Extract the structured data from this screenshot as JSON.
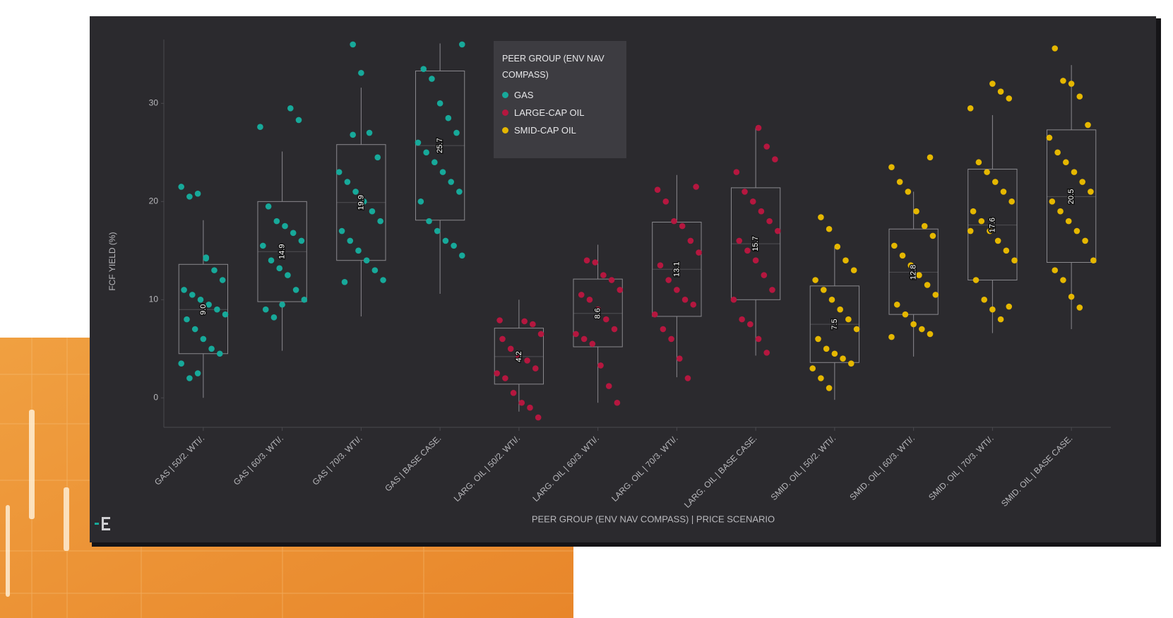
{
  "chart_data": {
    "type": "box",
    "y_label": "FCF YIELD (%)",
    "x_label": "PEER GROUP (ENV NAV COMPASS) | PRICE SCENARIO",
    "legend_title": "PEER GROUP (ENV NAV COMPASS)",
    "ylim": [
      -3,
      36.5
    ],
    "yticks": [
      0,
      10,
      20,
      30
    ],
    "categories": [
      "GAS | 50/2. WTI/.",
      "GAS | 60/3. WTI/.",
      "GAS | 70/3. WTI/.",
      "GAS | BASE CASE.",
      "LARG. OIL | 50/2. WTI/.",
      "LARG. OIL | 60/3. WTI/.",
      "LARG. OIL | 70/3. WTI/.",
      "LARG. OIL | BASE CASE.",
      "SMID. OIL | 50/2. WTI/.",
      "SMID. OIL | 60/3. WTI/.",
      "SMID. OIL | 70/3. WTI/.",
      "SMID. OIL | BASE CASE."
    ],
    "series": [
      {
        "name": "GAS",
        "color": "#17a99a",
        "boxes": [
          {
            "low": 0,
            "q1": 4.5,
            "median": 9,
            "median_label": "9.0",
            "q3": 13.6,
            "high": 18.1,
            "points": [
              21.5,
              20.5,
              20.8,
              14.2,
              13,
              12,
              11,
              10.5,
              10,
              9.5,
              9,
              8.5,
              8,
              7,
              6,
              5,
              4.5,
              3.5,
              2,
              2.5,
              14.3
            ]
          },
          {
            "low": 4.8,
            "q1": 9.8,
            "median": 14.9,
            "q3": 20,
            "high": 25.1,
            "points": [
              29.5,
              28.3,
              27.6,
              19.5,
              18,
              17.5,
              16.8,
              16,
              15.5,
              14,
              13.2,
              12.5,
              11,
              10,
              9,
              8.2,
              9.5
            ]
          },
          {
            "low": 8.3,
            "q1": 14,
            "median": 19.9,
            "q3": 25.8,
            "high": 31.6,
            "points": [
              36,
              33.1,
              27,
              24.5,
              23,
              22,
              21,
              20,
              19,
              18,
              17,
              16,
              15,
              14,
              13,
              12,
              11.8,
              26.8
            ]
          },
          {
            "low": 10.6,
            "q1": 18.1,
            "median": 25.7,
            "q3": 33.3,
            "high": 36.1,
            "points": [
              36,
              33.5,
              32.5,
              30,
              28.5,
              27,
              26,
              25,
              24,
              23,
              22,
              21,
              20,
              18,
              17,
              16,
              15.5,
              14.5
            ]
          }
        ]
      },
      {
        "name": "LARGE-CAP OIL",
        "color": "#b5173f",
        "boxes": [
          {
            "low": -1.4,
            "q1": 1.4,
            "median": 4.2,
            "q3": 7.1,
            "high": 10,
            "points": [
              7.8,
              7.5,
              6.5,
              6,
              5,
              4.2,
              3.8,
              3,
              2.5,
              2,
              0.5,
              -0.5,
              -1,
              -2,
              7.9
            ]
          },
          {
            "low": -0.5,
            "q1": 5.2,
            "median": 8.6,
            "q3": 12.1,
            "high": 15.6,
            "points": [
              14,
              13.8,
              12.5,
              12,
              11,
              10.5,
              10,
              9,
              8,
              7,
              6.5,
              6,
              5.5,
              3.3,
              1.2,
              -0.5
            ]
          },
          {
            "low": 2.1,
            "q1": 8.3,
            "median": 13.1,
            "q3": 17.9,
            "high": 22.7,
            "points": [
              21.5,
              21.2,
              20,
              18,
              17.5,
              16,
              14.8,
              13.5,
              12,
              11,
              10,
              9.5,
              8.5,
              7,
              6,
              4,
              2
            ]
          },
          {
            "low": 4.3,
            "q1": 10,
            "median": 15.7,
            "q3": 21.4,
            "high": 27.5,
            "points": [
              27.5,
              25.6,
              24.3,
              23,
              21,
              20,
              19,
              18,
              17,
              16,
              15,
              14,
              12.5,
              11,
              10,
              8,
              7.5,
              6,
              4.6
            ]
          }
        ]
      },
      {
        "name": "SMID-CAP OIL",
        "color": "#e5b700",
        "boxes": [
          {
            "low": -0.2,
            "q1": 3.6,
            "median": 7.5,
            "q3": 11.4,
            "high": 15.4,
            "points": [
              18.4,
              17.2,
              15.4,
              14,
              13,
              12,
              11,
              10,
              9,
              8,
              7,
              6,
              5,
              4.5,
              4,
              3.5,
              3,
              2,
              1
            ]
          },
          {
            "low": 4.2,
            "q1": 8.5,
            "median": 12.8,
            "q3": 17.2,
            "high": 21,
            "points": [
              24.5,
              23.5,
              22,
              21,
              19,
              17.5,
              16.5,
              15.5,
              14.5,
              13.5,
              12.5,
              11.5,
              10.5,
              9.5,
              8.5,
              7.5,
              7,
              6.5,
              6.2
            ]
          },
          {
            "low": 6.6,
            "q1": 12,
            "median": 17.6,
            "q3": 23.3,
            "high": 28.8,
            "points": [
              32,
              31.2,
              30.5,
              29.5,
              24,
              23,
              22,
              21,
              20,
              19,
              18,
              17,
              16,
              15,
              14,
              12,
              10,
              9,
              8,
              9.3,
              17
            ]
          },
          {
            "low": 7,
            "q1": 13.8,
            "median": 20.5,
            "q3": 27.3,
            "high": 33.9,
            "points": [
              35.6,
              32.3,
              32,
              30.7,
              27.8,
              26.5,
              25,
              24,
              23,
              22,
              21,
              20,
              19,
              18,
              17,
              16,
              14,
              13,
              12,
              10.3,
              9.2
            ]
          }
        ]
      }
    ]
  }
}
